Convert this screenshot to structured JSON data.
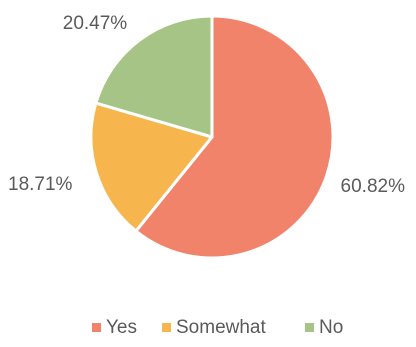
{
  "chart_data": {
    "type": "pie",
    "categories": [
      "Yes",
      "Somewhat",
      "No"
    ],
    "values": [
      60.82,
      18.71,
      20.47
    ],
    "labels": [
      "60.82%",
      "18.71%",
      "20.47%"
    ],
    "colors": [
      "#f2836b",
      "#f6b64d",
      "#a7c487"
    ],
    "legend": "bottom",
    "start_angle_deg": 0,
    "direction": "clockwise"
  }
}
